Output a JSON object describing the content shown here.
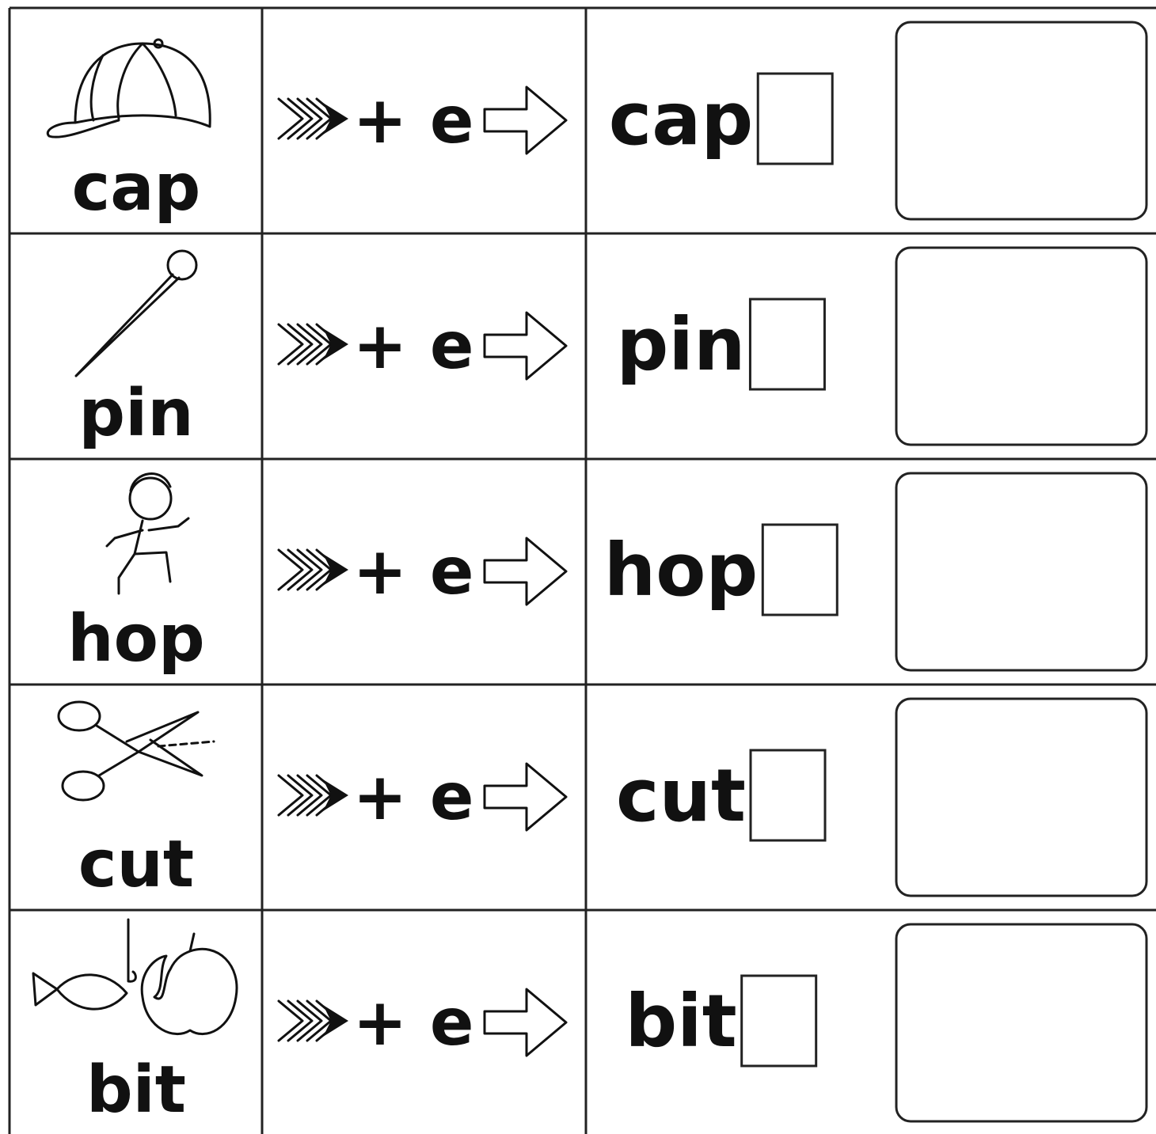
{
  "rows": [
    {
      "word": "cap",
      "suffix": "+ e"
    },
    {
      "word": "pin",
      "suffix": "+ e"
    },
    {
      "word": "hop",
      "suffix": "+ e"
    },
    {
      "word": "cut",
      "suffix": "+ e"
    },
    {
      "word": "bit",
      "suffix": "+ e"
    }
  ]
}
